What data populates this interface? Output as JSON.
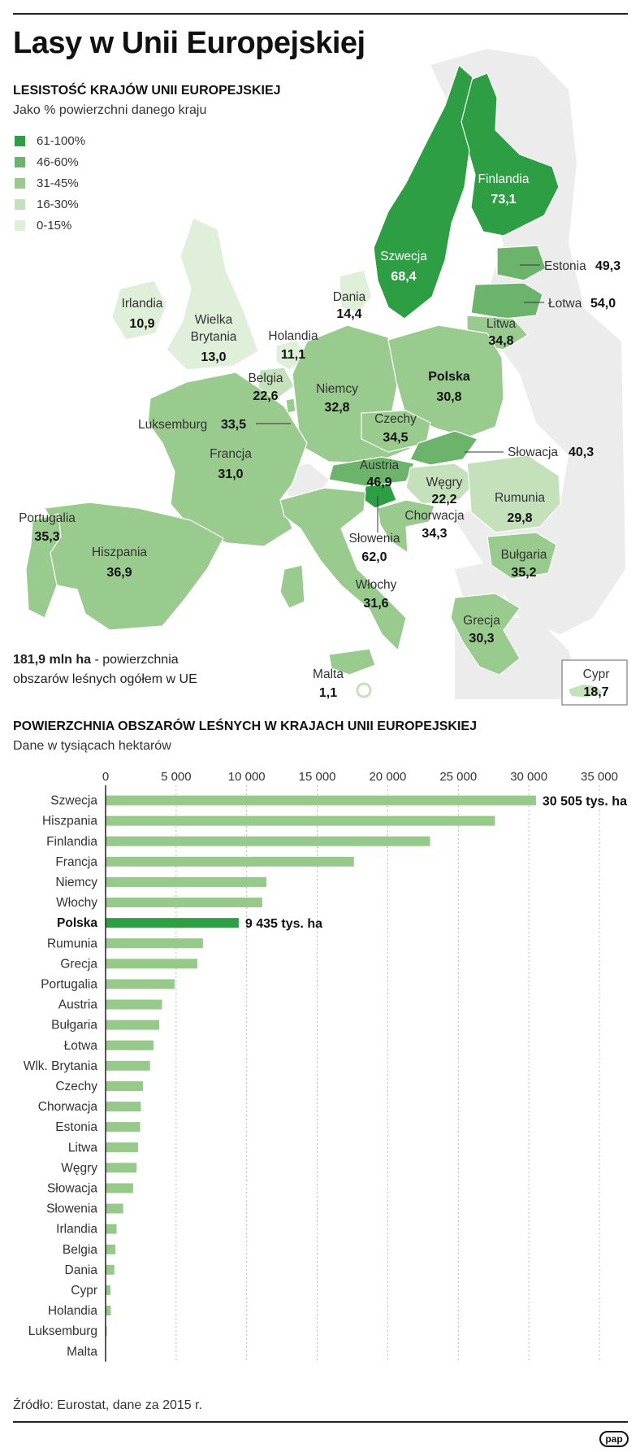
{
  "title": "Lasy w Unii Europejskiej",
  "map": {
    "title": "LESISTOŚĆ KRAJÓW UNII EUROPEJSKIEJ",
    "subtitle": "Jako % powierzchni danego kraju",
    "legend": [
      {
        "label": "61-100%",
        "color": "#2e9e45"
      },
      {
        "label": "46-60%",
        "color": "#6cb46c"
      },
      {
        "label": "31-45%",
        "color": "#9acb8e"
      },
      {
        "label": "16-30%",
        "color": "#c5e1bc"
      },
      {
        "label": "0-15%",
        "color": "#e0efd9"
      }
    ],
    "countries": [
      {
        "name": "Finlandia",
        "value": "73,1"
      },
      {
        "name": "Szwecja",
        "value": "68,4"
      },
      {
        "name": "Estonia",
        "value": "49,3"
      },
      {
        "name": "Łotwa",
        "value": "54,0"
      },
      {
        "name": "Litwa",
        "value": "34,8"
      },
      {
        "name": "Irlandia",
        "value": "10,9"
      },
      {
        "name": "Wielka Brytania",
        "value": "13,0"
      },
      {
        "name": "Dania",
        "value": "14,4"
      },
      {
        "name": "Holandia",
        "value": "11,1"
      },
      {
        "name": "Belgia",
        "value": "22,6"
      },
      {
        "name": "Niemcy",
        "value": "32,8"
      },
      {
        "name": "Polska",
        "value": "30,8"
      },
      {
        "name": "Luksemburg",
        "value": "33,5"
      },
      {
        "name": "Czechy",
        "value": "34,5"
      },
      {
        "name": "Słowacja",
        "value": "40,3"
      },
      {
        "name": "Francja",
        "value": "31,0"
      },
      {
        "name": "Austria",
        "value": "46,9"
      },
      {
        "name": "Węgry",
        "value": "22,2"
      },
      {
        "name": "Rumunia",
        "value": "29,8"
      },
      {
        "name": "Portugalia",
        "value": "35,3"
      },
      {
        "name": "Hiszpania",
        "value": "36,9"
      },
      {
        "name": "Słowenia",
        "value": "62,0"
      },
      {
        "name": "Chorwacja",
        "value": "34,3"
      },
      {
        "name": "Bułgaria",
        "value": "35,2"
      },
      {
        "name": "Włochy",
        "value": "31,6"
      },
      {
        "name": "Grecja",
        "value": "30,3"
      },
      {
        "name": "Malta",
        "value": "1,1"
      },
      {
        "name": "Cypr",
        "value": "18,7"
      }
    ],
    "total_bold": "181,9 mln ha",
    "total_text": " - powierzchnia obszarów leśnych ogółem w UE"
  },
  "chart_data": {
    "type": "bar",
    "orientation": "horizontal",
    "title": "POWIERZCHNIA OBSZARÓW LEŚNYCH W KRAJACH UNII EUROPEJSKIEJ",
    "subtitle": "Dane w tysiącach hektarów",
    "xlim": [
      0,
      35000
    ],
    "ticks": [
      0,
      5000,
      10000,
      15000,
      20000,
      25000,
      30000,
      35000
    ],
    "tick_labels": [
      "0",
      "5 000",
      "10 000",
      "15 000",
      "20 000",
      "25 000",
      "30 000",
      "35 000"
    ],
    "bar_color": "#97c98b",
    "highlight_color": "#2e9e45",
    "highlight": "Polska",
    "categories": [
      "Szwecja",
      "Hiszpania",
      "Finlandia",
      "Francja",
      "Niemcy",
      "Włochy",
      "Polska",
      "Rumunia",
      "Grecja",
      "Portugalia",
      "Austria",
      "Bułgaria",
      "Łotwa",
      "Wlk. Brytania",
      "Czechy",
      "Chorwacja",
      "Estonia",
      "Litwa",
      "Węgry",
      "Słowacja",
      "Słowenia",
      "Irlandia",
      "Belgia",
      "Dania",
      "Cypr",
      "Holandia",
      "Luksemburg",
      "Malta"
    ],
    "values": [
      30505,
      27600,
      23000,
      17600,
      11400,
      11100,
      9435,
      6900,
      6500,
      4900,
      4000,
      3800,
      3400,
      3150,
      2650,
      2500,
      2450,
      2300,
      2200,
      1950,
      1250,
      780,
      700,
      620,
      350,
      370,
      90,
      1
    ],
    "data_labels": [
      {
        "category": "Szwecja",
        "text": "30 505 tys. ha"
      },
      {
        "category": "Polska",
        "text": "9 435 tys. ha"
      }
    ]
  },
  "source": "Źródło: Eurostat, dane za 2015 r.",
  "logo": "pap"
}
